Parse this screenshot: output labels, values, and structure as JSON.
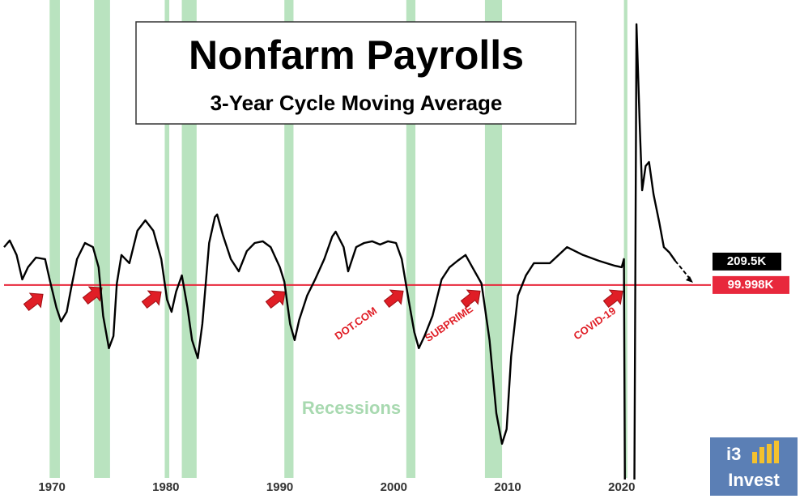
{
  "chart_data": {
    "type": "line",
    "title": "Nonfarm Payrolls",
    "subtitle": "3-Year Cycle Moving Average",
    "xlim": [
      1965.8,
      2036
    ],
    "ylim": [
      -800,
      1430
    ],
    "xticks": [
      1970,
      1980,
      1990,
      2000,
      2010,
      2020
    ],
    "series": [
      {
        "color": "#000000",
        "x": [
          1965.8,
          1966.3,
          1966.9,
          1967.4,
          1967.9,
          1968.6,
          1969.4,
          1969.8,
          1970.4,
          1970.8,
          1971.3,
          1971.7,
          1972.2,
          1972.9,
          1973.6,
          1974.1,
          1974.5,
          1975.0,
          1975.4,
          1975.7,
          1976.1,
          1976.8,
          1977.5,
          1978.2,
          1978.9,
          1979.6,
          1980.1,
          1980.5,
          1980.9,
          1981.4,
          1981.9,
          1982.3,
          1982.8,
          1983.2,
          1983.8,
          1984.3,
          1984.5,
          1985.0,
          1985.7,
          1986.4,
          1987.1,
          1987.8,
          1988.5,
          1989.2,
          1990.0,
          1990.4,
          1990.9,
          1991.3,
          1991.7,
          1992.4,
          1993.1,
          1993.9,
          1994.6,
          1994.9,
          1995.6,
          1996.0,
          1996.7,
          1997.4,
          1998.1,
          1998.8,
          1999.5,
          2000.2,
          2000.7,
          2001.3,
          2001.8,
          2002.2,
          2002.7,
          2003.4,
          2004.2,
          2004.9,
          2005.6,
          2006.3,
          2006.9,
          2007.7,
          2008.4,
          2009.0,
          2009.5,
          2009.9,
          2010.3,
          2010.9,
          2011.6,
          2012.3,
          2013.7,
          2015.2,
          2016.6,
          2018.0,
          2019.4,
          2020.0,
          2020.2,
          2020.3,
          2021.1,
          2021.3,
          2021.6,
          2021.8,
          2022.1,
          2022.4,
          2022.8,
          2023.3,
          2023.7,
          2024.2,
          2024.7
        ],
        "values": [
          277,
          308,
          240,
          126,
          183,
          228,
          221,
          126,
          -6,
          -70,
          -25,
          88,
          221,
          296,
          277,
          183,
          -44,
          -195,
          -138,
          107,
          240,
          202,
          353,
          402,
          353,
          221,
          32,
          -25,
          69,
          145,
          -6,
          -157,
          -241,
          -82,
          296,
          417,
          429,
          334,
          221,
          164,
          258,
          296,
          304,
          277,
          183,
          115,
          -82,
          -157,
          -63,
          51,
          126,
          221,
          326,
          349,
          277,
          164,
          277,
          296,
          304,
          289,
          304,
          296,
          221,
          32,
          -120,
          -195,
          -138,
          -44,
          126,
          183,
          213,
          240,
          183,
          107,
          -157,
          -498,
          -641,
          -573,
          -233,
          51,
          145,
          202,
          202,
          277,
          240,
          213,
          190,
          183,
          221,
          -1000,
          -1000,
          1317,
          825,
          542,
          655,
          674,
          523,
          391,
          277,
          251,
          213
        ]
      }
    ],
    "current": {
      "value": 209.5,
      "label": "209.5K"
    },
    "reference_line": {
      "value": 99.998,
      "label": "99.998K",
      "color": "#e8283c"
    },
    "recessions": [
      [
        1969.8,
        1970.7
      ],
      [
        1973.7,
        1975.1
      ],
      [
        1979.9,
        1980.3
      ],
      [
        1981.4,
        1982.7
      ],
      [
        1990.4,
        1991.2
      ],
      [
        2001.1,
        2001.9
      ],
      [
        2008.0,
        2009.5
      ],
      [
        2020.2,
        2020.5
      ]
    ],
    "recession_color": "#b9e3bf",
    "recession_label": "Recessions",
    "annotations": [
      "DOT.COM",
      "SUBPRIME",
      "COVID-19"
    ],
    "logo": {
      "line1": "i3",
      "line2": "Invest"
    }
  }
}
